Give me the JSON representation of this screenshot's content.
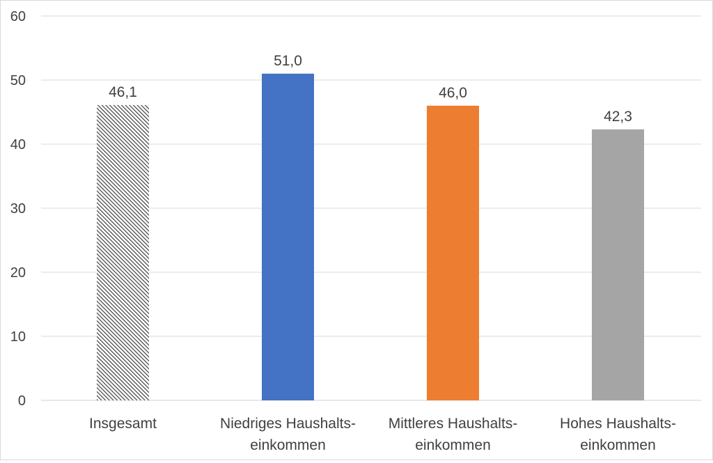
{
  "chart_data": {
    "type": "bar",
    "title": "",
    "xlabel": "",
    "ylabel": "",
    "ylim": [
      0,
      60
    ],
    "yticks": [
      0,
      10,
      20,
      30,
      40,
      50,
      60
    ],
    "grid": true,
    "legend": "none",
    "categories": [
      [
        "Insgesamt"
      ],
      [
        "Niedriges Haushalts-",
        "einkommen"
      ],
      [
        "Mittleres Haushalts-",
        "einkommen"
      ],
      [
        "Hohes Haushalts-",
        "einkommen"
      ]
    ],
    "values": [
      46.1,
      51.0,
      46.0,
      42.3
    ],
    "value_labels": [
      "46,1",
      "51,0",
      "46,0",
      "42,3"
    ],
    "bar_fills": [
      "hatched",
      "#4472C4",
      "#ED7D31",
      "#A5A5A5"
    ],
    "colors": {
      "grid": "#d9d9d9",
      "text": "#404040",
      "hatch_line": "#404040"
    }
  }
}
